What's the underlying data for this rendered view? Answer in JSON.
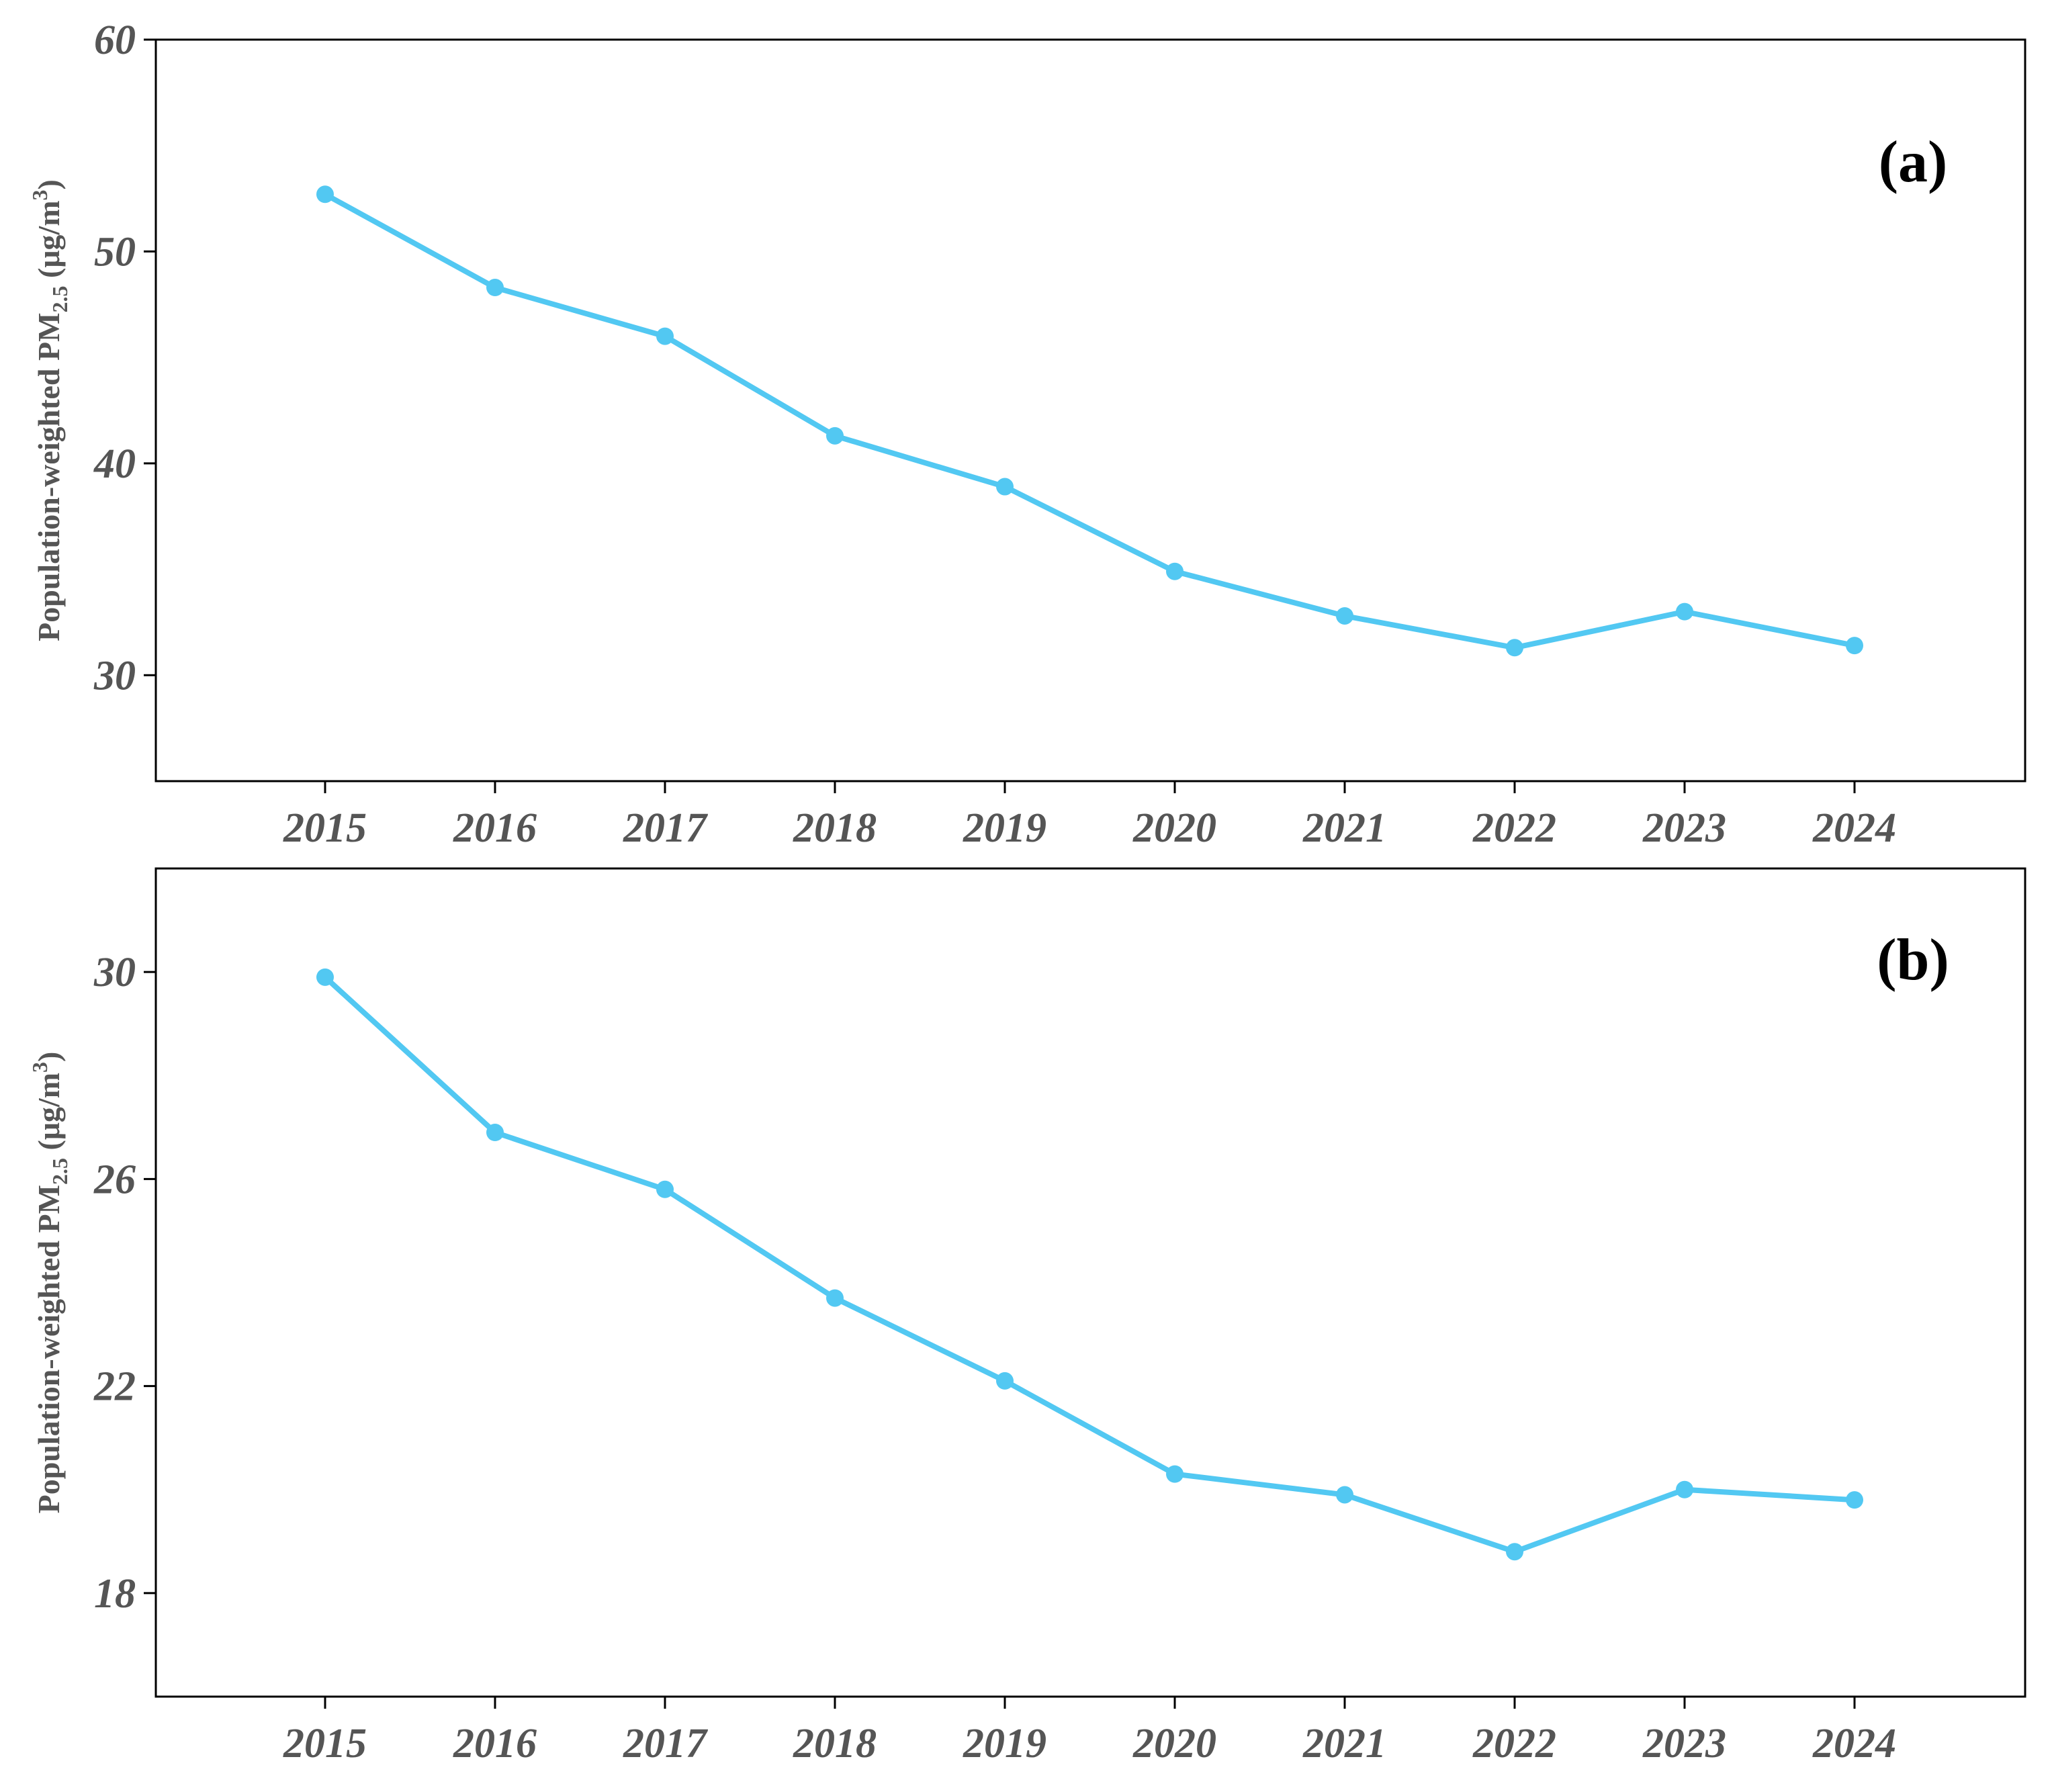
{
  "chart_data": [
    {
      "type": "line",
      "panel_label": "(a)",
      "ylabel": "Population-weighted PM2.5 (μg/m3)",
      "ylabel_parts": {
        "main": "Population-weighted PM",
        "sub": "2.5",
        "unit_open": " (μg/m",
        "sup": "3",
        "unit_close": ")"
      },
      "x": [
        "2015",
        "2016",
        "2017",
        "2018",
        "2019",
        "2020",
        "2021",
        "2022",
        "2023",
        "2024"
      ],
      "series": [
        {
          "values": [
            52.7,
            48.3,
            46.0,
            41.3,
            38.9,
            34.9,
            32.8,
            31.3,
            33.0,
            31.4
          ]
        }
      ],
      "ylim": [
        25,
        60
      ],
      "yticks": [
        "30",
        "40",
        "50",
        "60"
      ],
      "color": "#52C8F2",
      "grid": false
    },
    {
      "type": "line",
      "panel_label": "(b)",
      "ylabel": "Population-weighted PM2.5 (μg/m3)",
      "ylabel_parts": {
        "main": "Population-weighted PM",
        "sub": "2.5",
        "unit_open": " (μg/m",
        "sup": "3",
        "unit_close": ")"
      },
      "x": [
        "2015",
        "2016",
        "2017",
        "2018",
        "2019",
        "2020",
        "2021",
        "2022",
        "2023",
        "2024"
      ],
      "series": [
        {
          "values": [
            29.9,
            26.9,
            25.8,
            23.7,
            22.1,
            20.3,
            19.9,
            18.8,
            20.0,
            19.8
          ]
        }
      ],
      "ylim": [
        16,
        32
      ],
      "yticks": [
        "18",
        "22",
        "26",
        "30"
      ],
      "color": "#52C8F2",
      "grid": false
    }
  ]
}
